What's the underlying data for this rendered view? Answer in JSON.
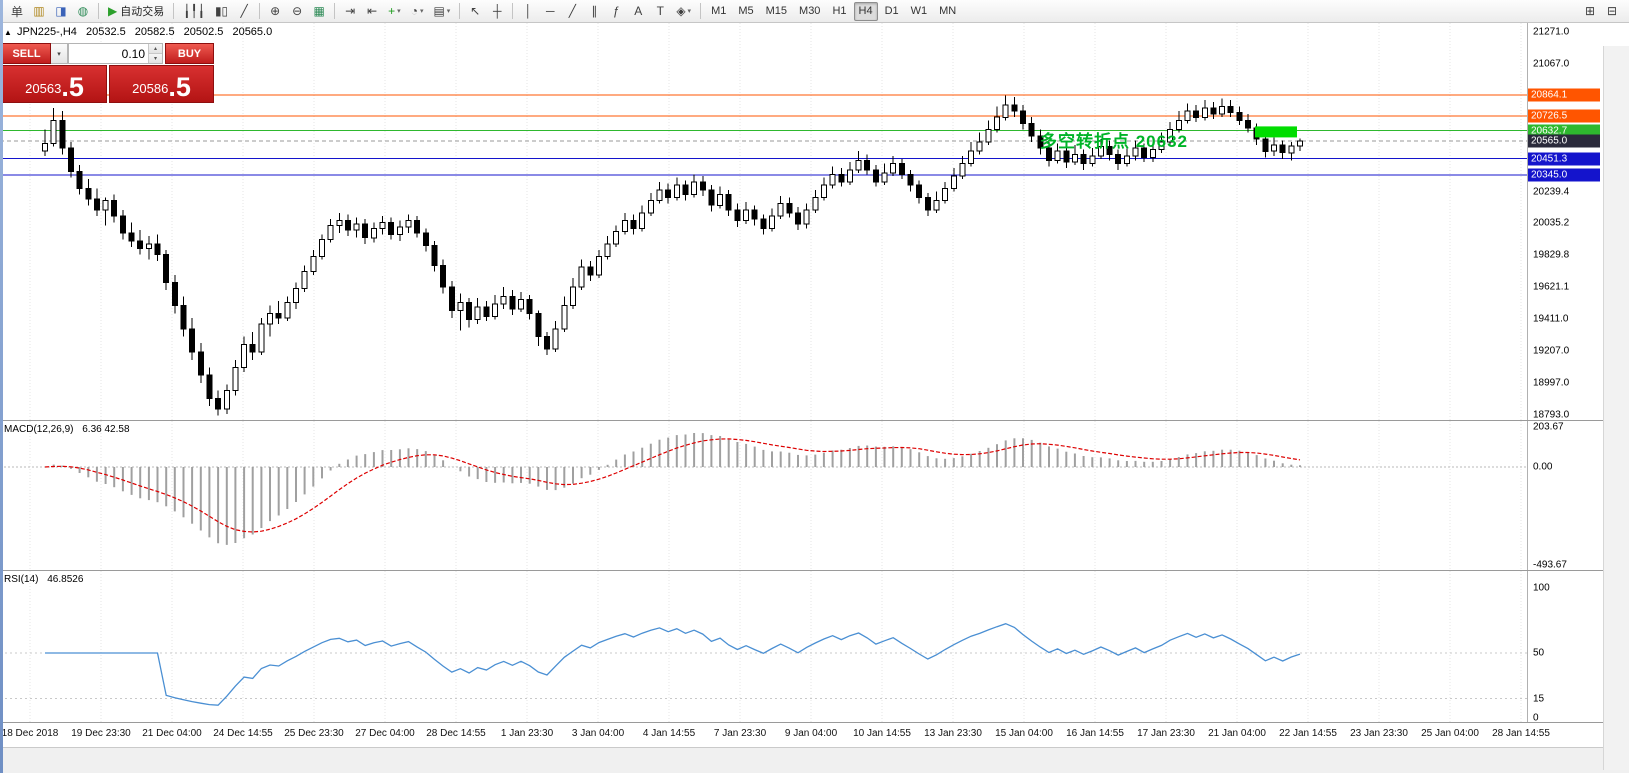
{
  "toolbar": {
    "groups": [
      {
        "items": [
          {
            "name": "new-order-button",
            "text": "单"
          },
          {
            "name": "new-chart-button",
            "glyph": "▥",
            "color": "#b08820"
          },
          {
            "name": "profiles-button",
            "glyph": "◨",
            "color": "#3a62b8"
          },
          {
            "name": "market-watch-button",
            "glyph": "◍",
            "color": "#2e8b57"
          }
        ]
      },
      {
        "items": [
          {
            "name": "autotrade-button",
            "glyph": "▶",
            "color": "#2ca02c",
            "text": "自动交易"
          }
        ]
      },
      {
        "items": [
          {
            "name": "bar-chart-button",
            "glyph": "╽╿╽"
          },
          {
            "name": "candlestick-chart-button",
            "glyph": "▮▯"
          },
          {
            "name": "line-chart-button",
            "glyph": "╱"
          }
        ]
      },
      {
        "items": [
          {
            "name": "zoom-in-button",
            "glyph": "⊕"
          },
          {
            "name": "zoom-out-button",
            "glyph": "⊖"
          },
          {
            "name": "tile-windows-button",
            "glyph": "▦",
            "color": "#2e8b57"
          }
        ]
      },
      {
        "items": [
          {
            "name": "auto-scroll-button",
            "glyph": "⇥"
          },
          {
            "name": "chart-shift-button",
            "glyph": "⇤"
          },
          {
            "name": "indicators-button",
            "glyph": "+",
            "color": "#1f9d1f",
            "caret": true
          },
          {
            "name": "periods-button",
            "glyph": "◔",
            "caret": true
          },
          {
            "name": "templates-button",
            "glyph": "▤",
            "caret": true
          }
        ]
      },
      {
        "items": [
          {
            "name": "cursor-button",
            "glyph": "↖"
          },
          {
            "name": "crosshair-button",
            "glyph": "┼"
          }
        ]
      },
      {
        "items": [
          {
            "name": "vertical-line-button",
            "glyph": "│"
          },
          {
            "name": "horizontal-line-button",
            "glyph": "─"
          },
          {
            "name": "trendline-button",
            "glyph": "╱"
          },
          {
            "name": "channel-button",
            "glyph": "∥"
          },
          {
            "name": "fibonacci-button",
            "glyph": "ƒ"
          },
          {
            "name": "text-button",
            "glyph": "A"
          },
          {
            "name": "label-button",
            "glyph": "T"
          },
          {
            "name": "shapes-button",
            "glyph": "◈",
            "caret": true
          }
        ]
      },
      {
        "items": [
          {
            "name": "timeframe-m1-button",
            "text": "M1",
            "tf": true
          },
          {
            "name": "timeframe-m5-button",
            "text": "M5",
            "tf": true
          },
          {
            "name": "timeframe-m15-button",
            "text": "M15",
            "tf": true
          },
          {
            "name": "timeframe-m30-button",
            "text": "M30",
            "tf": true
          },
          {
            "name": "timeframe-h1-button",
            "text": "H1",
            "tf": true
          },
          {
            "name": "timeframe-h4-button",
            "text": "H4",
            "tf": true,
            "active": true
          },
          {
            "name": "timeframe-d1-button",
            "text": "D1",
            "tf": true
          },
          {
            "name": "timeframe-w1-button",
            "text": "W1",
            "tf": true
          },
          {
            "name": "timeframe-mn-button",
            "text": "MN",
            "tf": true
          }
        ]
      },
      {
        "align": "right",
        "items": [
          {
            "name": "print-preview-button",
            "glyph": "⊞"
          },
          {
            "name": "print-button",
            "glyph": "⊟"
          }
        ]
      }
    ]
  },
  "symbol_readout": {
    "arrow": "▲",
    "symbol": "JPN225-,H4",
    "open": "20532.5",
    "high": "20582.5",
    "low": "20502.5",
    "close": "20565.0"
  },
  "trade_panel": {
    "sell_label": "SELL",
    "buy_label": "BUY",
    "volume": "0.10",
    "caret": "▾",
    "spin_up": "▴",
    "spin_down": "▾",
    "sell_price_int": "20563",
    "sell_price_frac": ".5",
    "buy_price_int": "20586",
    "buy_price_frac": ".5"
  },
  "annotation": {
    "text": "多空转折点 20632",
    "color": "#00b428"
  },
  "highlight_rect": {
    "x": 1255,
    "width": 42,
    "price": 20625,
    "height": 11,
    "color": "#00dd00"
  },
  "levels": [
    {
      "price": 20864.1,
      "label": "20864.1",
      "color": "#ff5500",
      "style": "solid"
    },
    {
      "price": 20726.5,
      "label": "20726.5",
      "color": "#ff5500",
      "style": "solid"
    },
    {
      "price": 20632.7,
      "label": "20632.7",
      "color": "#2eb82e",
      "style": "solid"
    },
    {
      "price": 20565.0,
      "label": "20565.0",
      "color": "#9a9a9a",
      "style": "dashed",
      "badge": "#2b2b3b"
    },
    {
      "price": 20451.3,
      "label": "20451.3",
      "color": "#1414cc",
      "style": "solid"
    },
    {
      "price": 20345.0,
      "label": "20345.0",
      "color": "#1414cc",
      "style": "solid"
    }
  ],
  "price_axis": {
    "ticks": [
      {
        "v": 21271.0,
        "label": "21271.0"
      },
      {
        "v": 21067.0,
        "label": "21067.0"
      },
      {
        "v": 20239.4,
        "label": "20239.4"
      },
      {
        "v": 20035.2,
        "label": "20035.2"
      },
      {
        "v": 19829.8,
        "label": "19829.8"
      },
      {
        "v": 19621.1,
        "label": "19621.1"
      },
      {
        "v": 19411.0,
        "label": "19411.0"
      },
      {
        "v": 19207.0,
        "label": "19207.0"
      },
      {
        "v": 18997.0,
        "label": "18997.0"
      },
      {
        "v": 18793.0,
        "label": "18793.0"
      }
    ]
  },
  "macd": {
    "label": "MACD(12,26,9)",
    "values_text": "6.36 42.58",
    "fast": 12,
    "slow": 26,
    "signal": 9,
    "range": {
      "top": 232,
      "bottom": -520
    },
    "axis": [
      {
        "v": 203.67,
        "label": "203.67"
      },
      {
        "v": 0,
        "label": "0.00"
      },
      {
        "v": -493.67,
        "label": "-493.67"
      }
    ]
  },
  "rsi": {
    "label": "RSI(14)",
    "value_text": "46.8526",
    "period": 14,
    "levels": [
      50,
      15
    ],
    "axis": [
      {
        "v": 100,
        "label": "100"
      },
      {
        "v": 50,
        "label": "50"
      },
      {
        "v": 15,
        "label": "15"
      },
      {
        "v": 0,
        "label": "0"
      }
    ]
  },
  "time_axis": {
    "start_x": 30,
    "step_x": 71,
    "labels": [
      "18 Dec 2018",
      "19 Dec 23:30",
      "21 Dec 04:00",
      "24 Dec 14:55",
      "25 Dec 23:30",
      "27 Dec 04:00",
      "28 Dec 14:55",
      "1 Jan 23:30",
      "3 Jan 04:00",
      "4 Jan 14:55",
      "7 Jan 23:30",
      "9 Jan 04:00",
      "10 Jan 14:55",
      "13 Jan 23:30",
      "15 Jan 04:00",
      "16 Jan 14:55",
      "17 Jan 23:30",
      "21 Jan 04:00",
      "22 Jan 14:55",
      "23 Jan 23:30",
      "25 Jan 04:00",
      "28 Jan 14:55"
    ]
  },
  "chart_data": {
    "type": "candlestick",
    "symbol": "JPN225-",
    "timeframe": "H4",
    "y_range": {
      "top": 21330,
      "bottom": 18760
    },
    "candles": [
      [
        20500,
        20640,
        20470,
        20550
      ],
      [
        20550,
        20780,
        20530,
        20700
      ],
      [
        20700,
        20760,
        20480,
        20520
      ],
      [
        20520,
        20560,
        20330,
        20370
      ],
      [
        20370,
        20410,
        20220,
        20260
      ],
      [
        20260,
        20320,
        20150,
        20190
      ],
      [
        20190,
        20260,
        20080,
        20120
      ],
      [
        20120,
        20200,
        20020,
        20180
      ],
      [
        20180,
        20220,
        20040,
        20080
      ],
      [
        20080,
        20120,
        19930,
        19970
      ],
      [
        19970,
        20040,
        19880,
        19920
      ],
      [
        19920,
        19990,
        19830,
        19870
      ],
      [
        19870,
        19950,
        19800,
        19900
      ],
      [
        19900,
        19960,
        19790,
        19830
      ],
      [
        19830,
        19860,
        19600,
        19650
      ],
      [
        19650,
        19700,
        19450,
        19500
      ],
      [
        19500,
        19560,
        19300,
        19350
      ],
      [
        19350,
        19420,
        19150,
        19200
      ],
      [
        19200,
        19260,
        19000,
        19050
      ],
      [
        19050,
        19100,
        18850,
        18900
      ],
      [
        18900,
        18950,
        18790,
        18830
      ],
      [
        18830,
        18990,
        18800,
        18950
      ],
      [
        18950,
        19150,
        18920,
        19100
      ],
      [
        19100,
        19300,
        19070,
        19250
      ],
      [
        19250,
        19330,
        19150,
        19200
      ],
      [
        19200,
        19420,
        19180,
        19380
      ],
      [
        19380,
        19500,
        19300,
        19450
      ],
      [
        19450,
        19530,
        19380,
        19420
      ],
      [
        19420,
        19560,
        19400,
        19520
      ],
      [
        19520,
        19650,
        19480,
        19610
      ],
      [
        19610,
        19760,
        19590,
        19720
      ],
      [
        19720,
        19860,
        19700,
        19820
      ],
      [
        19820,
        19960,
        19800,
        19930
      ],
      [
        19930,
        20060,
        19910,
        20020
      ],
      [
        20020,
        20100,
        19970,
        20050
      ],
      [
        20050,
        20090,
        19950,
        19990
      ],
      [
        19990,
        20070,
        19940,
        20030
      ],
      [
        20030,
        20060,
        19900,
        19940
      ],
      [
        19940,
        20040,
        19910,
        20000
      ],
      [
        20000,
        20080,
        19960,
        20040
      ],
      [
        20040,
        20070,
        19930,
        19960
      ],
      [
        19960,
        20050,
        19920,
        20010
      ],
      [
        20010,
        20090,
        19970,
        20050
      ],
      [
        20050,
        20080,
        19940,
        19970
      ],
      [
        19970,
        20000,
        19850,
        19890
      ],
      [
        19890,
        19920,
        19720,
        19760
      ],
      [
        19760,
        19800,
        19580,
        19620
      ],
      [
        19620,
        19660,
        19420,
        19470
      ],
      [
        19470,
        19580,
        19340,
        19520
      ],
      [
        19520,
        19550,
        19360,
        19410
      ],
      [
        19410,
        19550,
        19380,
        19490
      ],
      [
        19490,
        19530,
        19400,
        19430
      ],
      [
        19430,
        19570,
        19410,
        19510
      ],
      [
        19510,
        19620,
        19480,
        19560
      ],
      [
        19560,
        19600,
        19440,
        19480
      ],
      [
        19480,
        19590,
        19460,
        19540
      ],
      [
        19540,
        19570,
        19410,
        19450
      ],
      [
        19450,
        19470,
        19240,
        19300
      ],
      [
        19300,
        19330,
        19180,
        19220
      ],
      [
        19220,
        19400,
        19200,
        19350
      ],
      [
        19350,
        19560,
        19330,
        19500
      ],
      [
        19500,
        19680,
        19480,
        19620
      ],
      [
        19620,
        19800,
        19600,
        19750
      ],
      [
        19750,
        19790,
        19660,
        19700
      ],
      [
        19700,
        19860,
        19680,
        19820
      ],
      [
        19820,
        19950,
        19800,
        19900
      ],
      [
        19900,
        20020,
        19880,
        19980
      ],
      [
        19980,
        20100,
        19960,
        20050
      ],
      [
        20050,
        20090,
        19960,
        20000
      ],
      [
        20000,
        20150,
        19980,
        20100
      ],
      [
        20100,
        20230,
        20080,
        20180
      ],
      [
        20180,
        20300,
        20160,
        20250
      ],
      [
        20250,
        20290,
        20160,
        20200
      ],
      [
        20200,
        20330,
        20180,
        20280
      ],
      [
        20280,
        20310,
        20180,
        20220
      ],
      [
        20220,
        20350,
        20200,
        20300
      ],
      [
        20300,
        20340,
        20210,
        20250
      ],
      [
        20250,
        20280,
        20110,
        20150
      ],
      [
        20150,
        20270,
        20130,
        20220
      ],
      [
        20220,
        20250,
        20080,
        20120
      ],
      [
        20120,
        20160,
        20010,
        20050
      ],
      [
        20050,
        20170,
        20030,
        20120
      ],
      [
        20120,
        20150,
        20020,
        20060
      ],
      [
        20060,
        20090,
        19960,
        20000
      ],
      [
        20000,
        20130,
        19980,
        20080
      ],
      [
        20080,
        20210,
        20060,
        20160
      ],
      [
        20160,
        20200,
        20070,
        20100
      ],
      [
        20100,
        20140,
        19990,
        20030
      ],
      [
        20030,
        20160,
        20000,
        20120
      ],
      [
        20120,
        20250,
        20100,
        20200
      ],
      [
        20200,
        20330,
        20180,
        20280
      ],
      [
        20280,
        20400,
        20260,
        20350
      ],
      [
        20350,
        20390,
        20270,
        20300
      ],
      [
        20300,
        20430,
        20280,
        20380
      ],
      [
        20380,
        20500,
        20360,
        20440
      ],
      [
        20440,
        20480,
        20350,
        20380
      ],
      [
        20380,
        20410,
        20270,
        20300
      ],
      [
        20300,
        20420,
        20280,
        20360
      ],
      [
        20360,
        20470,
        20340,
        20420
      ],
      [
        20420,
        20450,
        20320,
        20350
      ],
      [
        20350,
        20380,
        20240,
        20280
      ],
      [
        20280,
        20310,
        20160,
        20200
      ],
      [
        20200,
        20230,
        20080,
        20120
      ],
      [
        20120,
        20240,
        20100,
        20180
      ],
      [
        20180,
        20300,
        20160,
        20260
      ],
      [
        20260,
        20390,
        20240,
        20340
      ],
      [
        20340,
        20470,
        20320,
        20420
      ],
      [
        20420,
        20560,
        20400,
        20500
      ],
      [
        20500,
        20620,
        20480,
        20560
      ],
      [
        20560,
        20700,
        20540,
        20640
      ],
      [
        20640,
        20790,
        20620,
        20720
      ],
      [
        20720,
        20860,
        20700,
        20800
      ],
      [
        20800,
        20850,
        20720,
        20760
      ],
      [
        20760,
        20800,
        20640,
        20680
      ],
      [
        20680,
        20720,
        20560,
        20600
      ],
      [
        20600,
        20640,
        20480,
        20520
      ],
      [
        20520,
        20560,
        20400,
        20440
      ],
      [
        20440,
        20550,
        20420,
        20500
      ],
      [
        20500,
        20530,
        20390,
        20430
      ],
      [
        20430,
        20540,
        20410,
        20480
      ],
      [
        20480,
        20510,
        20380,
        20420
      ],
      [
        20420,
        20520,
        20400,
        20470
      ],
      [
        20470,
        20580,
        20450,
        20530
      ],
      [
        20530,
        20570,
        20440,
        20480
      ],
      [
        20480,
        20510,
        20380,
        20420
      ],
      [
        20420,
        20530,
        20400,
        20470
      ],
      [
        20470,
        20570,
        20440,
        20520
      ],
      [
        20520,
        20550,
        20430,
        20460
      ],
      [
        20460,
        20560,
        20430,
        20510
      ],
      [
        20510,
        20620,
        20490,
        20560
      ],
      [
        20560,
        20690,
        20540,
        20640
      ],
      [
        20640,
        20760,
        20620,
        20700
      ],
      [
        20700,
        20810,
        20680,
        20760
      ],
      [
        20760,
        20800,
        20690,
        20720
      ],
      [
        20720,
        20830,
        20700,
        20780
      ],
      [
        20780,
        20820,
        20710,
        20740
      ],
      [
        20740,
        20840,
        20720,
        20790
      ],
      [
        20790,
        20830,
        20720,
        20750
      ],
      [
        20750,
        20790,
        20670,
        20700
      ],
      [
        20700,
        20740,
        20620,
        20650
      ],
      [
        20650,
        20680,
        20540,
        20580
      ],
      [
        20580,
        20610,
        20460,
        20500
      ],
      [
        20500,
        20590,
        20470,
        20540
      ],
      [
        20540,
        20570,
        20450,
        20490
      ],
      [
        20490,
        20560,
        20440,
        20532.5
      ],
      [
        20532.5,
        20582.5,
        20502.5,
        20565
      ]
    ]
  }
}
